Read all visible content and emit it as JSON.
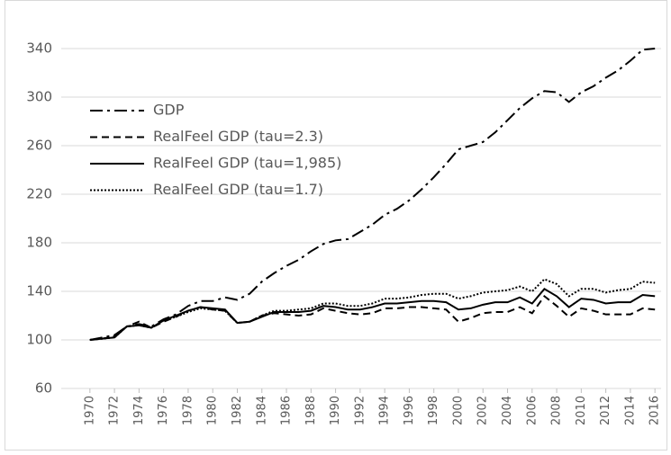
{
  "chart_data": {
    "type": "line",
    "x": [
      1970,
      1971,
      1972,
      1973,
      1974,
      1975,
      1976,
      1977,
      1978,
      1979,
      1980,
      1981,
      1982,
      1983,
      1984,
      1985,
      1986,
      1987,
      1988,
      1989,
      1990,
      1991,
      1992,
      1993,
      1994,
      1995,
      1996,
      1997,
      1998,
      1999,
      2000,
      2001,
      2002,
      2003,
      2004,
      2005,
      2006,
      2007,
      2008,
      2009,
      2010,
      2011,
      2012,
      2013,
      2014,
      2015,
      2016
    ],
    "xlim": [
      1969.5,
      2016.5
    ],
    "xticks": [
      1970,
      1972,
      1974,
      1976,
      1978,
      1980,
      1982,
      1984,
      1986,
      1988,
      1990,
      1992,
      1994,
      1996,
      1998,
      2000,
      2002,
      2004,
      2006,
      2008,
      2010,
      2012,
      2014,
      2016
    ],
    "ylim": [
      60,
      340
    ],
    "yticks": [
      60,
      100,
      140,
      180,
      220,
      260,
      300,
      340
    ],
    "grid": true,
    "legend": "upper-left",
    "series": [
      {
        "name": "GDP",
        "color": "#000000",
        "style": "dashdot",
        "values": [
          100,
          102,
          104,
          111,
          113,
          111,
          117,
          121,
          128,
          132,
          132,
          135,
          133,
          138,
          148,
          155,
          161,
          166,
          173,
          179,
          182,
          183,
          189,
          195,
          203,
          208,
          215,
          224,
          234,
          245,
          257,
          260,
          263,
          271,
          281,
          291,
          299,
          305,
          304,
          296,
          304,
          309,
          316,
          322,
          330,
          339,
          340
        ]
      },
      {
        "name": "RealFeel GDP (tau=2.3)",
        "color": "#000000",
        "style": "dashed",
        "values": [
          100,
          101,
          103,
          111,
          115,
          110,
          115,
          119,
          124,
          127,
          125,
          124,
          114,
          115,
          120,
          122,
          121,
          120,
          121,
          126,
          124,
          122,
          121,
          122,
          126,
          126,
          127,
          127,
          126,
          125,
          115,
          118,
          122,
          123,
          123,
          127,
          122,
          136,
          128,
          119,
          126,
          124,
          121,
          121,
          121,
          126,
          125
        ]
      },
      {
        "name": "RealFeel GDP (tau=1,985)",
        "color": "#000000",
        "style": "solid",
        "values": [
          100,
          101,
          102,
          111,
          112,
          110,
          116,
          120,
          124,
          127,
          126,
          125,
          114,
          115,
          119,
          123,
          123,
          123,
          124,
          128,
          127,
          125,
          125,
          127,
          130,
          130,
          131,
          132,
          132,
          131,
          125,
          126,
          129,
          131,
          131,
          135,
          130,
          142,
          136,
          127,
          134,
          133,
          130,
          131,
          131,
          137,
          136
        ]
      },
      {
        "name": "RealFeel GDP (tau=1.7)",
        "color": "#000000",
        "style": "dotted",
        "values": [
          100,
          101,
          102,
          111,
          112,
          110,
          116,
          119,
          123,
          126,
          125,
          124,
          114,
          115,
          120,
          124,
          124,
          125,
          126,
          130,
          130,
          128,
          128,
          130,
          134,
          134,
          135,
          137,
          138,
          138,
          134,
          136,
          139,
          140,
          141,
          144,
          140,
          150,
          146,
          136,
          142,
          142,
          139,
          141,
          142,
          148,
          147
        ]
      }
    ]
  }
}
